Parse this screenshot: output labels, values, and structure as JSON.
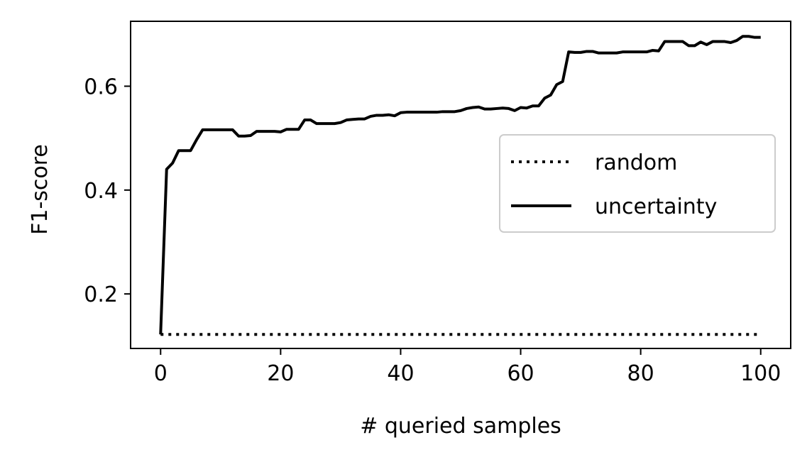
{
  "chart_data": {
    "type": "line",
    "title": "",
    "xlabel": "# queried samples",
    "ylabel": "F1-score",
    "xlim": [
      -5,
      105
    ],
    "ylim": [
      0.095,
      0.725
    ],
    "xticks": [
      0,
      20,
      40,
      60,
      80,
      100
    ],
    "xtick_labels": [
      "0",
      "20",
      "40",
      "60",
      "80",
      "100"
    ],
    "yticks": [
      0.2,
      0.4,
      0.6
    ],
    "ytick_labels": [
      "0.2",
      "0.4",
      "0.6"
    ],
    "grid": false,
    "legend": {
      "placement": "center-right",
      "entries": [
        "random",
        "uncertainty"
      ]
    },
    "series": [
      {
        "name": "random",
        "style": "dotted",
        "color": "#000000",
        "x": [
          0,
          100
        ],
        "y": [
          0.122,
          0.122
        ]
      },
      {
        "name": "uncertainty",
        "style": "solid",
        "color": "#000000",
        "x": [
          0,
          1,
          2,
          3,
          4,
          5,
          6,
          7,
          8,
          9,
          10,
          11,
          12,
          13,
          14,
          15,
          16,
          17,
          18,
          19,
          20,
          21,
          22,
          23,
          24,
          25,
          26,
          27,
          28,
          29,
          30,
          31,
          32,
          33,
          34,
          35,
          36,
          37,
          38,
          39,
          40,
          41,
          42,
          43,
          44,
          45,
          46,
          47,
          48,
          49,
          50,
          51,
          52,
          53,
          54,
          55,
          56,
          57,
          58,
          59,
          60,
          61,
          62,
          63,
          64,
          65,
          66,
          67,
          68,
          69,
          70,
          71,
          72,
          73,
          74,
          75,
          76,
          77,
          78,
          79,
          80,
          81,
          82,
          83,
          84,
          85,
          86,
          87,
          88,
          89,
          90,
          91,
          92,
          93,
          94,
          95,
          96,
          97,
          98,
          99,
          100
        ],
        "y": [
          0.122,
          0.44,
          0.452,
          0.476,
          0.476,
          0.476,
          0.497,
          0.516,
          0.516,
          0.516,
          0.516,
          0.516,
          0.516,
          0.504,
          0.504,
          0.505,
          0.513,
          0.513,
          0.513,
          0.513,
          0.512,
          0.517,
          0.517,
          0.517,
          0.535,
          0.535,
          0.528,
          0.528,
          0.528,
          0.528,
          0.53,
          0.535,
          0.536,
          0.537,
          0.537,
          0.542,
          0.544,
          0.544,
          0.545,
          0.543,
          0.549,
          0.55,
          0.55,
          0.55,
          0.55,
          0.55,
          0.55,
          0.551,
          0.551,
          0.551,
          0.553,
          0.557,
          0.559,
          0.56,
          0.556,
          0.556,
          0.557,
          0.558,
          0.557,
          0.553,
          0.559,
          0.558,
          0.562,
          0.562,
          0.577,
          0.583,
          0.603,
          0.609,
          0.666,
          0.665,
          0.665,
          0.667,
          0.667,
          0.664,
          0.664,
          0.664,
          0.664,
          0.666,
          0.666,
          0.666,
          0.666,
          0.666,
          0.669,
          0.668,
          0.686,
          0.686,
          0.686,
          0.686,
          0.678,
          0.678,
          0.685,
          0.68,
          0.686,
          0.686,
          0.686,
          0.684,
          0.688,
          0.696,
          0.696,
          0.694,
          0.694
        ]
      }
    ]
  }
}
